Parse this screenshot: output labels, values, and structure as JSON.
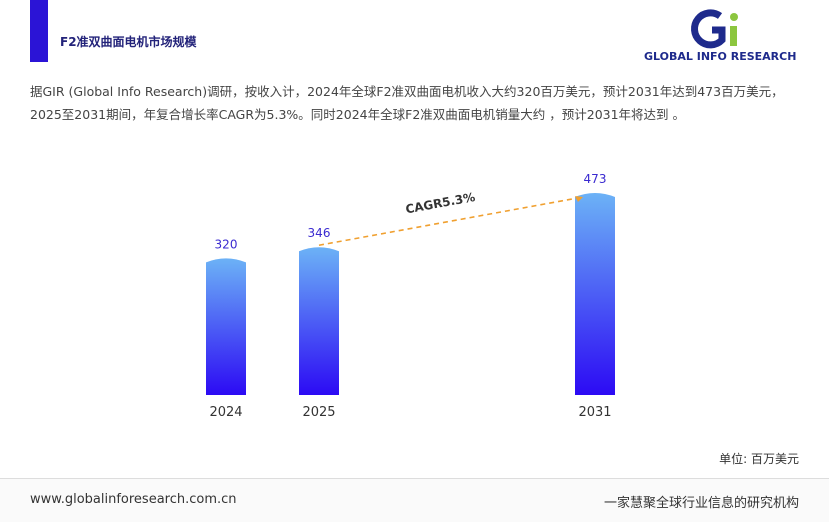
{
  "header": {
    "title": "F2准双曲面电机市场规模",
    "logo_text": "GLOBAL INFO RESEARCH"
  },
  "description": "据GIR (Global Info Research)调研，按收入计，2024年全球F2准双曲面电机收入大约320百万美元，预计2031年达到473百万美元，2025至2031期间，年复合增长率CAGR为5.3%。同时2024年全球F2准双曲面电机销量大约 ，预计2031年将达到 。",
  "chart_data": {
    "type": "bar",
    "categories": [
      "2024",
      "2025",
      "2031"
    ],
    "values": [
      320,
      346,
      473
    ],
    "color_top": "#6cb2f6",
    "color_bottom": "#2c0af4",
    "value_label_color": "#3a2ad0",
    "annotation": "CAGR5.3%",
    "annotation_color": "#f0a030",
    "unit": "单位: 百万美元"
  },
  "footer": {
    "website": "www.globalinforesearch.com.cn",
    "slogan": "一家慧聚全球行业信息的研究机构"
  }
}
